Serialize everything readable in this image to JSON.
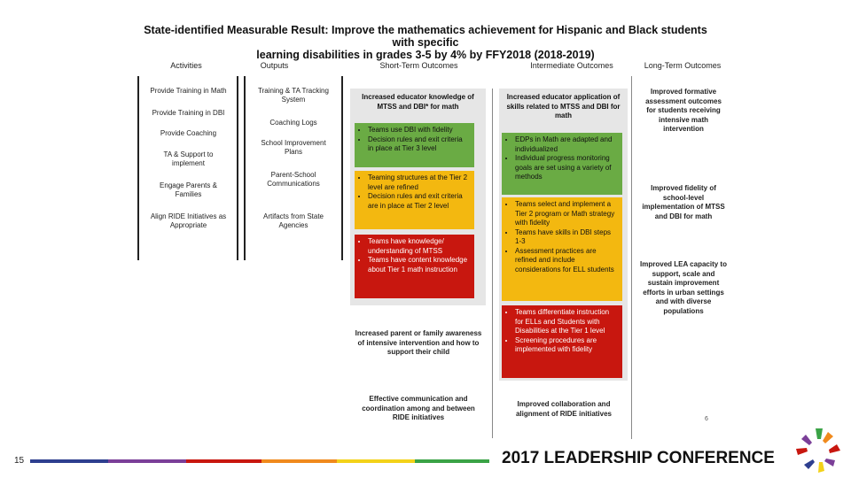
{
  "title": {
    "line1": "State-identified Measurable Result: Improve the mathematics achievement for Hispanic and Black students with specific",
    "line2": "learning disabilities in grades 3-5 by 4% by FFY2018 (2018-2019)"
  },
  "columns": {
    "activities": "Activities",
    "outputs": "Outputs",
    "short": "Short-Term Outcomes",
    "intermediate": "Intermediate Outcomes",
    "long": "Long-Term Outcomes"
  },
  "activities": [
    "Provide Training in Math",
    "Provide Training in DBI",
    "Provide Coaching",
    "TA & Support to implement",
    "Engage Parents & Families",
    "Align RIDE Initiatives as Appropriate"
  ],
  "outputs": [
    "Training & TA Tracking System",
    "Coaching Logs",
    "School Improvement Plans",
    "Parent-School Communications",
    "Artifacts from State Agencies"
  ],
  "short": {
    "header": "Increased educator knowledge of MTSS and DBI* for math",
    "green": [
      "Teams use DBI with fidelity",
      "Decision rules and exit criteria in place at Tier 3 level"
    ],
    "yellow": [
      "Teaming structures at the Tier 2 level are refined",
      "Decision rules and exit criteria are in place at Tier 2 level"
    ],
    "red": [
      "Teams have knowledge/ understanding of MTSS",
      "Teams have content knowledge about Tier 1 math instruction"
    ],
    "parent": "Increased parent or family awareness of intensive intervention and how to support their child",
    "communication": "Effective communication and coordination among and between RIDE initiatives"
  },
  "intermediate": {
    "header": "Increased educator application of skills related to MTSS and DBI for math",
    "green": [
      "EDPs in Math are adapted and individualized",
      "Individual progress monitoring goals are set using a variety of methods"
    ],
    "yellow": [
      "Teams select and implement a Tier 2 program or Math strategy with fidelity",
      "Teams have skills in DBI steps 1-3",
      "Assessment practices are refined and include considerations for ELL students"
    ],
    "red": [
      "Teams differentiate instruction for ELLs and Students with Disabilities at the Tier 1 level",
      "Screening procedures are implemented with fidelity"
    ],
    "collaboration": "Improved collaboration and alignment of RIDE initiatives"
  },
  "long": [
    "Improved formative assessment outcomes for students receiving intensive math intervention",
    "Improved fidelity of school-level implementation of MTSS and DBI for math",
    "Improved LEA capacity to support, scale and sustain improvement efforts in urban settings and with diverse populations"
  ],
  "page_mark": "6",
  "footer": {
    "slide_number": "15",
    "conference": "2017 LEADERSHIP CONFERENCE"
  },
  "colors": {
    "green": "#6aab44",
    "yellow": "#f3b810",
    "red": "#c8170f",
    "panel": "#e6e6e6",
    "footer_stripe": [
      "#2e3f8f",
      "#7b3f98",
      "#c8170f",
      "#f08a1d",
      "#f3d21a",
      "#3aa346"
    ]
  }
}
